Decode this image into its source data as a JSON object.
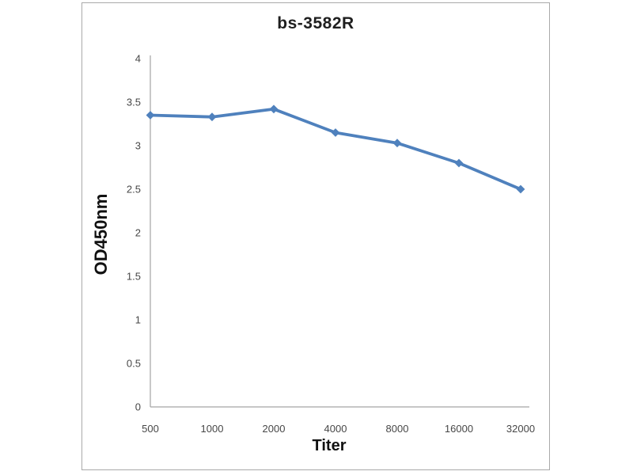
{
  "frame": {
    "background": "#ffffff",
    "border_color": "#a9a9a9"
  },
  "chart_data": {
    "type": "line",
    "title": "bs-3582R",
    "xlabel": "Titer",
    "ylabel": "OD450nm",
    "categories": [
      "500",
      "1000",
      "2000",
      "4000",
      "8000",
      "16000",
      "32000"
    ],
    "series": [
      {
        "name": "bs-3582R",
        "values": [
          3.35,
          3.33,
          3.42,
          3.15,
          3.03,
          2.8,
          2.5
        ]
      }
    ],
    "ylim": [
      0,
      4
    ],
    "y_ticks": [
      0,
      0.5,
      1,
      1.5,
      2,
      2.5,
      3,
      3.5,
      4
    ],
    "grid": false,
    "legend": "none",
    "line_color": "#4f81bd",
    "marker": "diamond",
    "axis_color": "#a3a3a3",
    "tick_label_color": "#474747",
    "title_color": "#1f1f1f"
  }
}
